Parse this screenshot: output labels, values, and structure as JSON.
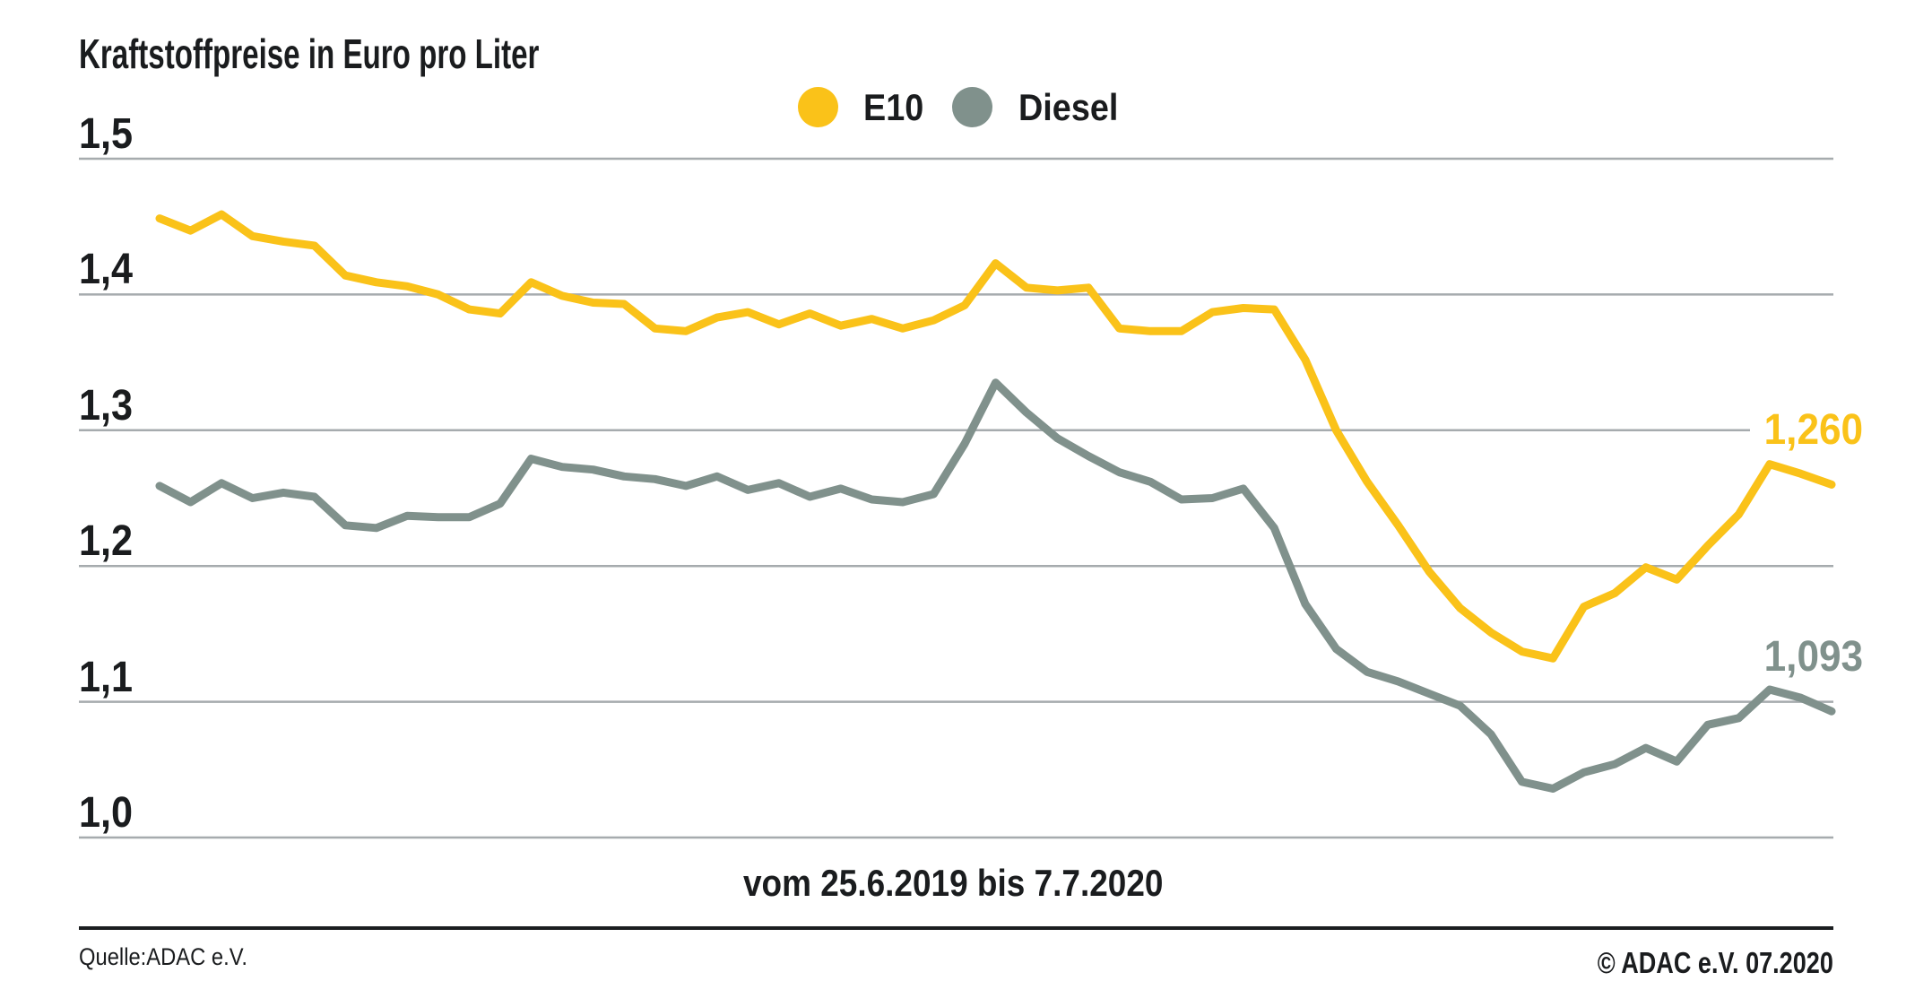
{
  "page": {
    "title": "Kraftstoffpreise in Euro pro Liter",
    "x_axis_caption": "vom 25.6.2019 bis 7.7.2020",
    "source_left": "Quelle:ADAC e.V.",
    "source_right": "© ADAC e.V. 07.2020"
  },
  "colors": {
    "e10": "#FAC219",
    "diesel": "#80918C",
    "gridline": "#A6ABAE",
    "text": "#1A1C1E",
    "footer_rule": "#1B1E20",
    "background": "#FFFFFF"
  },
  "chart_data": {
    "type": "line",
    "title": "Kraftstoffpreise in Euro pro Liter",
    "x_range_label": "vom 25.6.2019 bis 7.7.2020",
    "x_start_date": "25.6.2019",
    "x_end_date": "7.7.2020",
    "x_unit": "weekly",
    "n_points": 55,
    "ylim": [
      1.0,
      1.5
    ],
    "grid": true,
    "legend_position": "top-center",
    "y_ticks": [
      {
        "value": 1.5,
        "label": "1,5"
      },
      {
        "value": 1.4,
        "label": "1,4"
      },
      {
        "value": 1.3,
        "label": "1,3"
      },
      {
        "value": 1.2,
        "label": "1,2"
      },
      {
        "value": 1.1,
        "label": "1,1"
      },
      {
        "value": 1.0,
        "label": "1,0"
      }
    ],
    "series": [
      {
        "name": "E10",
        "color": "#FAC219",
        "end_label": "1,260",
        "end_value": 1.26,
        "values": [
          1.456,
          1.447,
          1.459,
          1.443,
          1.439,
          1.436,
          1.414,
          1.409,
          1.406,
          1.4,
          1.389,
          1.386,
          1.409,
          1.399,
          1.394,
          1.393,
          1.375,
          1.373,
          1.383,
          1.387,
          1.378,
          1.386,
          1.377,
          1.382,
          1.375,
          1.381,
          1.392,
          1.423,
          1.405,
          1.403,
          1.405,
          1.375,
          1.373,
          1.373,
          1.387,
          1.39,
          1.389,
          1.352,
          1.3,
          1.262,
          1.23,
          1.196,
          1.169,
          1.151,
          1.137,
          1.132,
          1.17,
          1.18,
          1.199,
          1.19,
          1.215,
          1.238,
          1.275,
          1.268,
          1.26
        ]
      },
      {
        "name": "Diesel",
        "color": "#80918C",
        "end_label": "1,093",
        "end_value": 1.093,
        "values": [
          1.259,
          1.247,
          1.261,
          1.25,
          1.254,
          1.251,
          1.23,
          1.228,
          1.237,
          1.236,
          1.236,
          1.246,
          1.279,
          1.273,
          1.271,
          1.266,
          1.264,
          1.259,
          1.266,
          1.256,
          1.261,
          1.251,
          1.257,
          1.249,
          1.247,
          1.253,
          1.29,
          1.335,
          1.313,
          1.294,
          1.281,
          1.269,
          1.262,
          1.249,
          1.25,
          1.257,
          1.228,
          1.172,
          1.139,
          1.122,
          1.115,
          1.106,
          1.097,
          1.076,
          1.041,
          1.036,
          1.048,
          1.054,
          1.066,
          1.056,
          1.083,
          1.088,
          1.109,
          1.103,
          1.093
        ]
      }
    ]
  }
}
